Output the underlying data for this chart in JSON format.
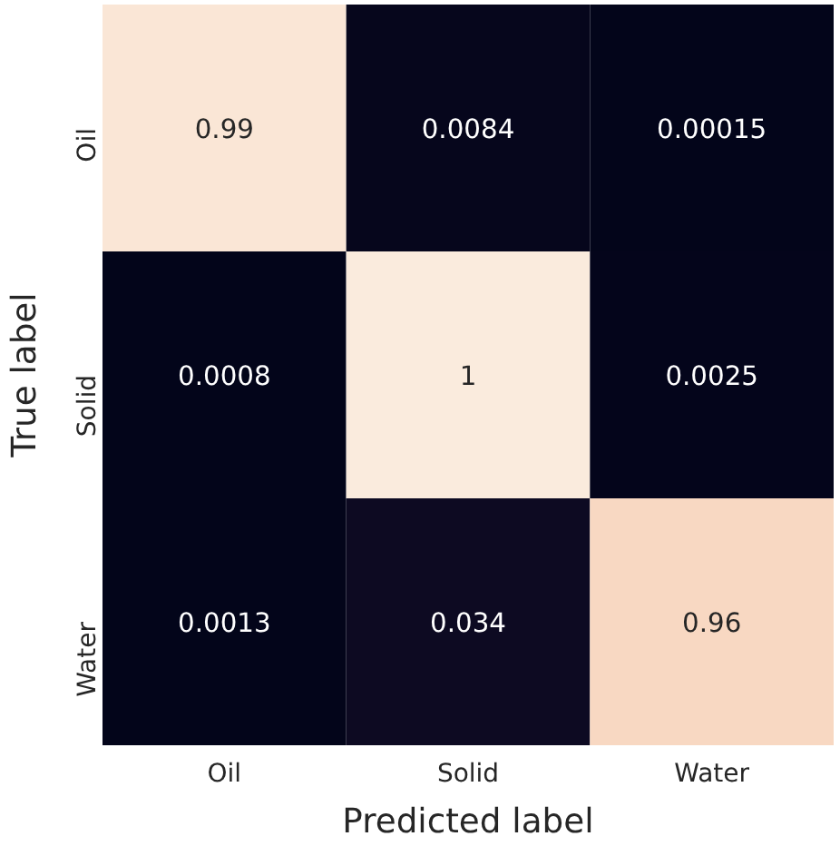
{
  "chart_data": {
    "type": "heatmap",
    "xlabel": "Predicted label",
    "ylabel": "True label",
    "categories": [
      "Oil",
      "Solid",
      "Water"
    ],
    "y_categories": [
      "Oil",
      "Solid",
      "Water"
    ],
    "cells": [
      [
        0.99,
        0.0084,
        0.00015
      ],
      [
        0.0008,
        1,
        0.0025
      ],
      [
        0.0013,
        0.034,
        0.96
      ]
    ],
    "data_labels": true
  }
}
